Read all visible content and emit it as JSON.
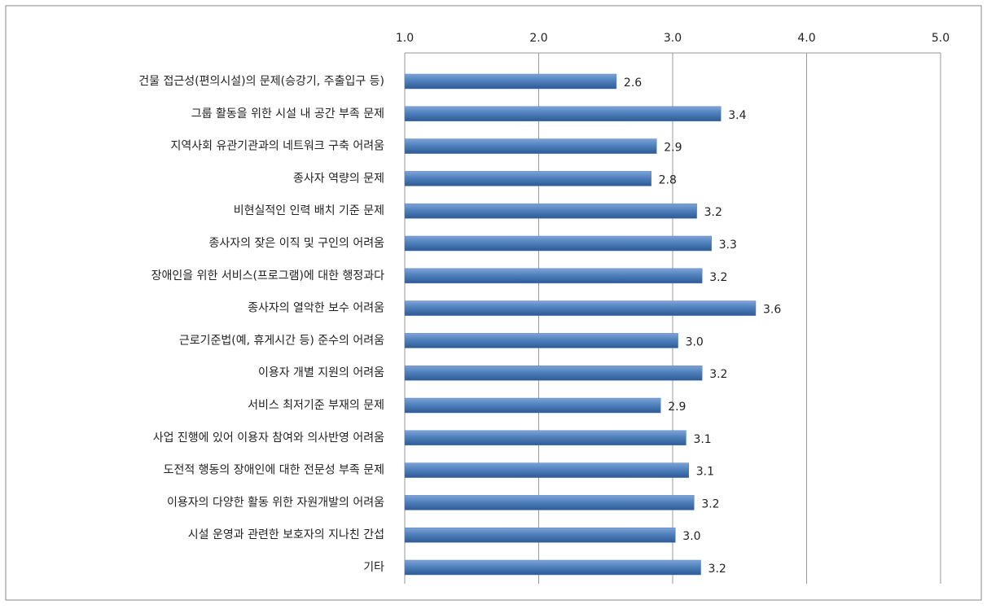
{
  "chart_data": {
    "type": "hbar",
    "categories": [
      "건물 접근성(편의시설)의 문제(승강기, 주출입구 등)",
      "그룹 활동을 위한 시설 내 공간 부족 문제",
      "지역사회 유관기관과의 네트워크 구축 어려움",
      "종사자 역량의 문제",
      "비현실적인 인력 배치 기준 문제",
      "종사자의 잦은 이직 및 구인의 어려움",
      "장애인을 위한 서비스(프로그램)에 대한 행정과다",
      "종사자의 열악한 보수 어려움",
      "근로기준법(예, 휴게시간 등) 준수의 어려움",
      "이용자 개별 지원의 어려움",
      "서비스 최저기준 부재의 문제",
      "사업 진행에 있어 이용자 참여와 의사반영 어려움",
      "도전적 행동의 장애인에 대한 전문성 부족 문제",
      "이용자의 다양한 활동 위한 자원개발의 어려움",
      "시설 운영과 관련한 보호자의 지나친 간섭",
      "기타"
    ],
    "values": [
      2.58,
      3.36,
      2.88,
      2.84,
      3.18,
      3.29,
      3.22,
      3.62,
      3.04,
      3.22,
      2.91,
      3.1,
      3.12,
      3.16,
      3.02,
      3.21
    ],
    "value_labels": [
      "2.6",
      "3.4",
      "2.9",
      "2.8",
      "3.2",
      "3.3",
      "3.2",
      "3.6",
      "3.0",
      "3.2",
      "2.9",
      "3.1",
      "3.1",
      "3.2",
      "3.0",
      "3.2"
    ],
    "color": "#4f81bd",
    "xlim": [
      1,
      5
    ],
    "xticks": [
      {
        "value": 1,
        "label": "1.0"
      },
      {
        "value": 2,
        "label": "2.0"
      },
      {
        "value": 3,
        "label": "3.0"
      },
      {
        "value": 4,
        "label": "4.0"
      },
      {
        "value": 5,
        "label": "5.0"
      }
    ],
    "grid": true
  }
}
